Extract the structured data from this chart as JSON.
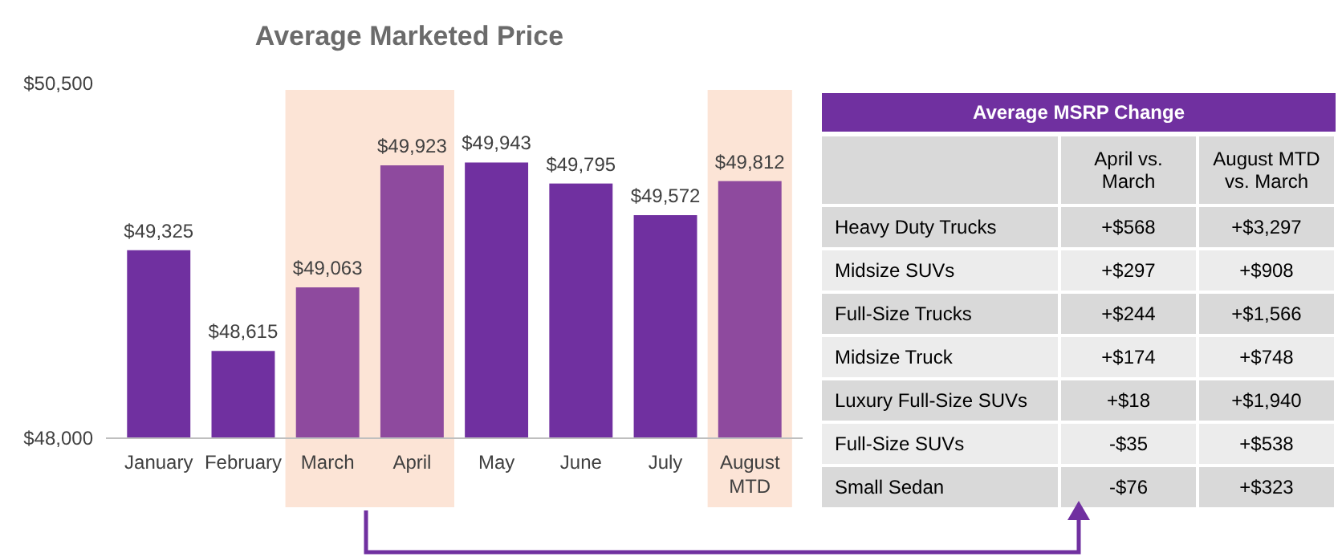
{
  "chart_data": [
    {
      "type": "bar",
      "title": "Average Marketed Price",
      "categories": [
        "January",
        "February",
        "March",
        "April",
        "May",
        "June",
        "July",
        "August MTD"
      ],
      "values": [
        49325,
        48615,
        49063,
        49923,
        49943,
        49795,
        49572,
        49812
      ],
      "colors": [
        "#7030a0",
        "#7030a0",
        "#8e4a9e",
        "#8e4a9e",
        "#7030a0",
        "#7030a0",
        "#7030a0",
        "#8e4a9e"
      ],
      "value_labels": [
        "$49,325",
        "$48,615",
        "$49,063",
        "$49,923",
        "$49,943",
        "$49,795",
        "$49,572",
        "$49,812"
      ],
      "ylim": [
        48000,
        50500
      ],
      "yticks": [
        {
          "value": 48000,
          "label": "$48,000"
        },
        {
          "value": 50500,
          "label": "$50,500"
        }
      ],
      "bands": [
        {
          "axis": "x",
          "from": "March",
          "to": "April",
          "color": "#fce4d6"
        },
        {
          "axis": "x",
          "from": "August MTD",
          "to": "August MTD",
          "color": "#fce4d6"
        }
      ],
      "grid": false
    },
    {
      "type": "other",
      "title": "Average MSRP Change",
      "categories": [
        "April vs. March",
        "August MTD vs. March"
      ],
      "y_categories": [
        "Heavy Duty Trucks",
        "Midsize SUVs",
        "Full-Size Trucks",
        "Midsize Truck",
        "Luxury Full-Size SUVs",
        "Full-Size SUVs",
        "Small Sedan"
      ],
      "cell_labels": [
        [
          "+$568",
          "+$3,297"
        ],
        [
          "+$297",
          "+$908"
        ],
        [
          "+$244",
          "+$1,566"
        ],
        [
          "+$174",
          "+$748"
        ],
        [
          "+$18",
          "+$1,940"
        ],
        [
          "-$35",
          "+$538"
        ],
        [
          "-$76",
          "+$323"
        ]
      ]
    }
  ]
}
